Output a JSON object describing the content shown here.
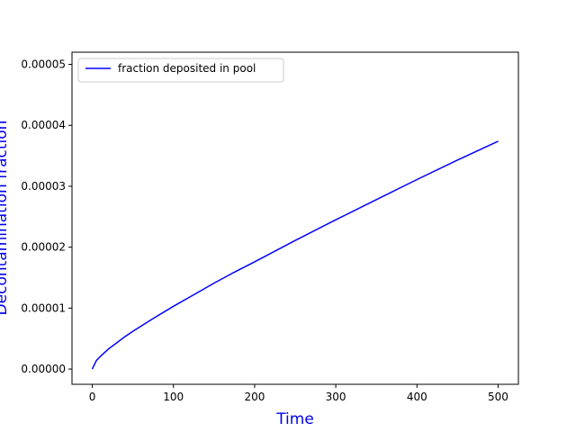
{
  "chart_data": {
    "type": "line",
    "xlabel": "Time",
    "ylabel": "Decontamination fraction",
    "xlim": [
      -25,
      525
    ],
    "ylim": [
      -2.5e-06,
      5.2e-05
    ],
    "x_ticks": [
      0,
      100,
      200,
      300,
      400,
      500
    ],
    "x_tick_labels": [
      "0",
      "100",
      "200",
      "300",
      "400",
      "500"
    ],
    "y_ticks": [
      0,
      1e-05,
      2e-05,
      3e-05,
      4e-05,
      5e-05
    ],
    "y_tick_labels": [
      "0.00000",
      "0.00001",
      "0.00002",
      "0.00003",
      "0.00004",
      "0.00005"
    ],
    "grid": false,
    "legend_position": "top-left",
    "colors": {
      "series": "#0000ff",
      "axis_title": "#0000ee"
    },
    "series": [
      {
        "name": "fraction deposited in pool",
        "x": [
          0,
          5,
          10,
          20,
          30,
          40,
          50,
          75,
          100,
          125,
          150,
          175,
          200,
          250,
          300,
          350,
          400,
          450,
          500
        ],
        "y": [
          0,
          1.4e-06,
          2.1e-06,
          3.3e-06,
          4.3e-06,
          5.3e-06,
          6.2e-06,
          8.3e-06,
          1.03e-05,
          1.22e-05,
          1.41e-05,
          1.59e-05,
          1.76e-05,
          2.11e-05,
          2.45e-05,
          2.78e-05,
          3.11e-05,
          3.43e-05,
          3.74e-05
        ]
      }
    ]
  }
}
